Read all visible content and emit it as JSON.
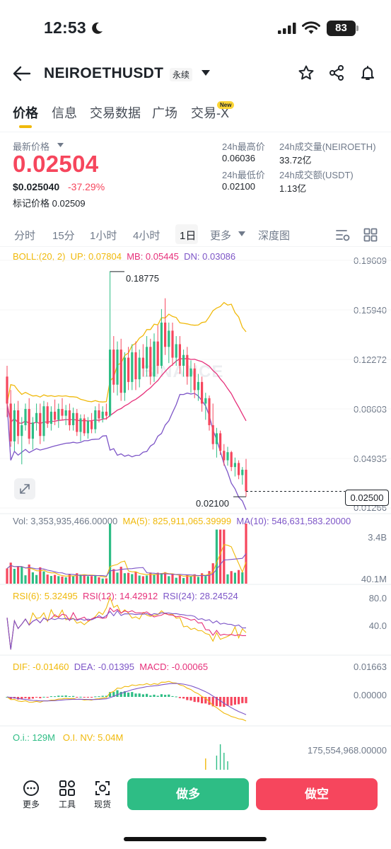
{
  "status_bar": {
    "time": "12:53",
    "battery": "83"
  },
  "header": {
    "symbol": "NEIROETHUSDT",
    "contract_type": "永续"
  },
  "tabs": [
    {
      "label": "价格"
    },
    {
      "label": "信息"
    },
    {
      "label": "交易数据"
    },
    {
      "label": "广场"
    },
    {
      "label": "交易-X"
    }
  ],
  "new_badge": "New",
  "ticker": {
    "latest_label": "最新价格",
    "last_price": "0.02504",
    "usd_price": "$0.025040",
    "change_pct": "-37.29%",
    "mark_label": "标记价格",
    "mark_price": "0.02509",
    "high_label": "24h最高价",
    "high_value": "0.06036",
    "low_label": "24h最低价",
    "low_value": "0.02100",
    "vol_base_label": "24h成交量(NEIROETH)",
    "vol_base_value": "33.72亿",
    "vol_quote_label": "24h成交额(USDT)",
    "vol_quote_value": "1.13亿"
  },
  "timeframes": [
    {
      "label": "分时"
    },
    {
      "label": "15分"
    },
    {
      "label": "1小时"
    },
    {
      "label": "4小时"
    },
    {
      "label": "1日"
    },
    {
      "label": "更多"
    },
    {
      "label": "深度图"
    }
  ],
  "indicators": {
    "boll": {
      "name": "BOLL:(20, 2)",
      "up": "UP: 0.07804",
      "mb": "MB: 0.05445",
      "dn": "DN: 0.03086"
    },
    "vol": {
      "vol": "Vol: 3,353,935,466.00000",
      "ma5": "MA(5): 825,911,065.39999",
      "ma10": "MA(10): 546,631,583.20000"
    },
    "rsi": {
      "r6": "RSI(6): 5.32495",
      "r12": "RSI(12): 14.42912",
      "r24": "RSI(24): 28.24524"
    },
    "macd": {
      "dif": "DIF: -0.01460",
      "dea": "DEA: -0.01395",
      "macd": "MACD: -0.00065"
    },
    "oi": {
      "oi": "O.i.: 129M",
      "oinv": "O.I. NV: 5.04M"
    }
  },
  "axes": {
    "price_ticks": [
      "0.19609",
      "0.15940",
      "0.12272",
      "0.08603",
      "0.04935",
      "0.01266"
    ],
    "vol_ticks": [
      "3.4B",
      "40.1M"
    ],
    "rsi_ticks": [
      "80.0",
      "40.0"
    ],
    "macd_ticks": [
      "0.01663",
      "0.00000"
    ],
    "oi_ticks": [
      "175,554,968.00000"
    ]
  },
  "chart_labels": {
    "high": "0.18775",
    "low": "0.02100",
    "current_price_tag": "0.02500",
    "watermark": "BINANCE"
  },
  "bottom_nav": [
    {
      "label": "更多",
      "icon": "more-icon"
    },
    {
      "label": "工具",
      "icon": "tools-icon"
    },
    {
      "label": "现货",
      "icon": "spot-icon"
    }
  ],
  "actions": {
    "long": "做多",
    "short": "做空"
  },
  "colors": {
    "up": "#2ebd85",
    "down": "#f6465d",
    "boll_up": "#f0b90b",
    "boll_mb": "#e6307a",
    "boll_dn": "#7d55c7",
    "accent": "#fcd535"
  },
  "chart_data": [
    {
      "type": "candlestick",
      "title": "",
      "y_ticks": [
        0.19609,
        0.1594,
        0.12272,
        0.08603,
        0.04935,
        0.01266
      ],
      "ylim": [
        0.01266,
        0.19609
      ],
      "annotations": {
        "high": 0.18775,
        "low": 0.021,
        "last": 0.025
      },
      "ohlc": [
        [
          0.11,
          0.118,
          0.08,
          0.09
        ],
        [
          0.09,
          0.1,
          0.058,
          0.062
        ],
        [
          0.062,
          0.09,
          0.055,
          0.085
        ],
        [
          0.085,
          0.092,
          0.06,
          0.066
        ],
        [
          0.066,
          0.08,
          0.045,
          0.074
        ],
        [
          0.074,
          0.09,
          0.07,
          0.086
        ],
        [
          0.086,
          0.094,
          0.06,
          0.064
        ],
        [
          0.064,
          0.08,
          0.056,
          0.076
        ],
        [
          0.076,
          0.09,
          0.07,
          0.083
        ],
        [
          0.083,
          0.09,
          0.06,
          0.066
        ],
        [
          0.066,
          0.092,
          0.062,
          0.088
        ],
        [
          0.088,
          0.091,
          0.072,
          0.075
        ],
        [
          0.075,
          0.088,
          0.07,
          0.084
        ],
        [
          0.084,
          0.093,
          0.074,
          0.078
        ],
        [
          0.078,
          0.09,
          0.072,
          0.086
        ],
        [
          0.086,
          0.094,
          0.078,
          0.081
        ],
        [
          0.081,
          0.089,
          0.074,
          0.085
        ],
        [
          0.085,
          0.09,
          0.07,
          0.074
        ],
        [
          0.074,
          0.087,
          0.07,
          0.083
        ],
        [
          0.083,
          0.086,
          0.066,
          0.069
        ],
        [
          0.069,
          0.082,
          0.062,
          0.079
        ],
        [
          0.079,
          0.082,
          0.066,
          0.068
        ],
        [
          0.068,
          0.08,
          0.064,
          0.077
        ],
        [
          0.077,
          0.083,
          0.068,
          0.071
        ],
        [
          0.071,
          0.088,
          0.068,
          0.085
        ],
        [
          0.085,
          0.09,
          0.076,
          0.079
        ],
        [
          0.079,
          0.088,
          0.076,
          0.084
        ],
        [
          0.084,
          0.09,
          0.078,
          0.081
        ],
        [
          0.081,
          0.188,
          0.08,
          0.13
        ],
        [
          0.13,
          0.14,
          0.098,
          0.104
        ],
        [
          0.104,
          0.136,
          0.096,
          0.13
        ],
        [
          0.13,
          0.138,
          0.092,
          0.098
        ],
        [
          0.098,
          0.128,
          0.092,
          0.124
        ],
        [
          0.124,
          0.132,
          0.1,
          0.106
        ],
        [
          0.106,
          0.134,
          0.1,
          0.128
        ],
        [
          0.128,
          0.136,
          0.1,
          0.108
        ],
        [
          0.108,
          0.13,
          0.102,
          0.124
        ],
        [
          0.124,
          0.134,
          0.11,
          0.116
        ],
        [
          0.116,
          0.14,
          0.11,
          0.132
        ],
        [
          0.132,
          0.138,
          0.104,
          0.11
        ],
        [
          0.11,
          0.142,
          0.106,
          0.136
        ],
        [
          0.136,
          0.148,
          0.112,
          0.118
        ],
        [
          0.118,
          0.16,
          0.116,
          0.15
        ],
        [
          0.15,
          0.168,
          0.126,
          0.132
        ],
        [
          0.132,
          0.15,
          0.12,
          0.144
        ],
        [
          0.144,
          0.15,
          0.118,
          0.124
        ],
        [
          0.124,
          0.14,
          0.118,
          0.134
        ],
        [
          0.134,
          0.14,
          0.112,
          0.118
        ],
        [
          0.118,
          0.13,
          0.11,
          0.126
        ],
        [
          0.126,
          0.132,
          0.104,
          0.11
        ],
        [
          0.11,
          0.122,
          0.098,
          0.116
        ],
        [
          0.116,
          0.12,
          0.094,
          0.1
        ],
        [
          0.1,
          0.112,
          0.092,
          0.106
        ],
        [
          0.106,
          0.11,
          0.084,
          0.09
        ],
        [
          0.09,
          0.098,
          0.078,
          0.094
        ],
        [
          0.094,
          0.096,
          0.07,
          0.074
        ],
        [
          0.074,
          0.09,
          0.056,
          0.06
        ],
        [
          0.06,
          0.072,
          0.05,
          0.068
        ],
        [
          0.068,
          0.07,
          0.052,
          0.055
        ],
        [
          0.055,
          0.06,
          0.044,
          0.048
        ],
        [
          0.048,
          0.058,
          0.044,
          0.054
        ],
        [
          0.054,
          0.055,
          0.04,
          0.043
        ],
        [
          0.043,
          0.05,
          0.036,
          0.046
        ],
        [
          0.046,
          0.048,
          0.034,
          0.037
        ],
        [
          0.037,
          0.043,
          0.03,
          0.041
        ],
        [
          0.041,
          0.049,
          0.021,
          0.025
        ]
      ],
      "boll": {
        "up": 0.07804,
        "mb": 0.05445,
        "dn": 0.03086
      }
    }
  ]
}
